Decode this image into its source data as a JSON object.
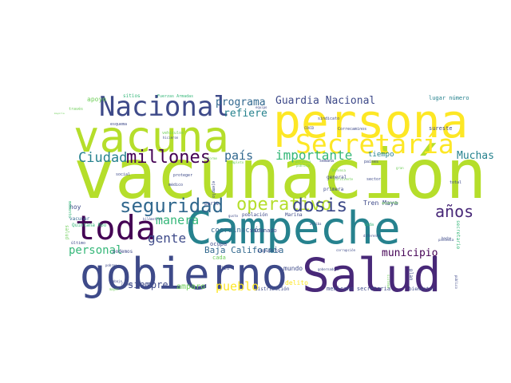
{
  "words": [
    {
      "text": "vacunación",
      "color": "#b5de2b"
    },
    {
      "text": "Campeche",
      "color": "#26828e"
    },
    {
      "text": "persona",
      "color": "#fde725"
    },
    {
      "text": "Salud",
      "color": "#482878"
    },
    {
      "text": "gobierno",
      "color": "#3e4a89"
    },
    {
      "text": "vacuna",
      "color": "#b5de2b"
    },
    {
      "text": "Nacional",
      "color": "#3e4a89"
    },
    {
      "text": "Secretaría",
      "color": "#fde725"
    },
    {
      "text": "toda",
      "color": "#440154"
    },
    {
      "text": "seguridad",
      "color": "#31688e"
    },
    {
      "text": "operativo",
      "color": "#b5de2b"
    },
    {
      "text": "dosis",
      "color": "#3e4a89"
    },
    {
      "text": "millones",
      "color": "#440154"
    },
    {
      "text": "importante",
      "color": "#35b779"
    },
    {
      "text": "Ciudad",
      "color": "#26828e"
    },
    {
      "text": "Muchas",
      "color": "#26828e"
    },
    {
      "text": "país",
      "color": "#31688e"
    },
    {
      "text": "años",
      "color": "#482878"
    },
    {
      "text": "gente",
      "color": "#3e4a89"
    },
    {
      "text": "programa",
      "color": "#31688e"
    },
    {
      "text": "Guardia Nacional",
      "color": "#3e4a89"
    },
    {
      "text": "refiere",
      "color": "#26828e"
    },
    {
      "text": "manera",
      "color": "#35b779"
    },
    {
      "text": "personal",
      "color": "#35b779"
    },
    {
      "text": "municipio",
      "color": "#440154"
    },
    {
      "text": "siempre",
      "color": "#3e4a89"
    },
    {
      "text": "pueblo",
      "color": "#fde725"
    },
    {
      "text": "Baja California",
      "color": "#31688e"
    },
    {
      "text": "tiempo",
      "color": "#26828e"
    },
    {
      "text": "amparo",
      "color": "#6ece58"
    },
    {
      "text": "mundo",
      "color": "#3e4a89"
    },
    {
      "text": "coordinación",
      "color": "#31688e"
    },
    {
      "text": "apoyo",
      "color": "#6ece58"
    },
    {
      "text": "lugar número",
      "color": "#26828e"
    },
    {
      "text": "sitios",
      "color": "#35b779"
    },
    {
      "text": "Fuerzas Armadas",
      "color": "#35b779"
    },
    {
      "text": "hoy",
      "color": "#3e4a89"
    },
    {
      "text": "vacunar",
      "color": "#31688e"
    },
    {
      "text": "Quintana Roo",
      "color": "#35b779"
    },
    {
      "text": "kilómetros",
      "color": "#3e4a89"
    },
    {
      "text": "último",
      "color": "#3e4a89"
    },
    {
      "text": "podemos",
      "color": "#3e4a89"
    },
    {
      "text": "ocupa",
      "color": "#3e4a89"
    },
    {
      "text": "cada",
      "color": "#6ece58"
    },
    {
      "text": "supuesto",
      "color": "#3e4a89"
    },
    {
      "text": "hizo",
      "color": "#3e4a89"
    },
    {
      "text": "distribución",
      "color": "#3e4a89"
    },
    {
      "text": "delito",
      "color": "#fde725"
    },
    {
      "text": "mexicano secretaria",
      "color": "#3e4a89"
    },
    {
      "text": "bienestar",
      "color": "#3e4a89"
    },
    {
      "text": "Tren Maya",
      "color": "#3e4a89"
    },
    {
      "text": "acuerdo",
      "color": "#6ece58"
    },
    {
      "text": "secretario",
      "color": "#35b779"
    },
    {
      "text": "primera",
      "color": "#3e4a89"
    },
    {
      "text": "general",
      "color": "#3e4a89"
    },
    {
      "text": "sector",
      "color": "#3e4a89"
    },
    {
      "text": "vacunado",
      "color": "#3e4a89"
    },
    {
      "text": "población",
      "color": "#3e4a89"
    },
    {
      "text": "Marina",
      "color": "#3e4a89"
    },
    {
      "text": "parte",
      "color": "#3e4a89"
    },
    {
      "text": "social",
      "color": "#3e4a89"
    },
    {
      "text": "proteger",
      "color": "#3e4a89"
    },
    {
      "text": "médico",
      "color": "#3e4a89"
    },
    {
      "text": "Correcaminos",
      "color": "#3e4a89"
    },
    {
      "text": "sureste",
      "color": "#3e4a89"
    },
    {
      "text": "sindicato",
      "color": "#3e4a89"
    },
    {
      "text": "semana",
      "color": "#3e4a89"
    },
    {
      "text": "países",
      "color": "#3e4a89"
    },
    {
      "text": "Defensa",
      "color": "#6ece58"
    },
    {
      "text": "plan",
      "color": "#3e4a89"
    },
    {
      "text": "público",
      "color": "#3e4a89"
    },
    {
      "text": "pandemia",
      "color": "#3e4a89"
    },
    {
      "text": "hecho",
      "color": "#3e4a89"
    },
    {
      "text": "total",
      "color": "#3e4a89"
    },
    {
      "text": "esquema",
      "color": "#3e4a89"
    },
    {
      "text": "través",
      "color": "#6ece58"
    },
    {
      "text": "mayoría",
      "color": "#6ece58"
    },
    {
      "text": "equipo",
      "color": "#3e4a89"
    },
    {
      "text": "vehículos",
      "color": "#6ece58"
    },
    {
      "text": "hicieron",
      "color": "#3e4a89"
    },
    {
      "text": "COVID",
      "color": "#3e4a89"
    },
    {
      "text": "política",
      "color": "#6ece58"
    },
    {
      "text": "suficiente",
      "color": "#6ece58"
    },
    {
      "text": "corrupción",
      "color": "#3e4a89"
    },
    {
      "text": "gobernadora",
      "color": "#3e4a89"
    },
    {
      "text": "diferente",
      "color": "#3e4a89"
    },
    {
      "text": "trabajo",
      "color": "#3e4a89"
    },
    {
      "text": "pobres",
      "color": "#3e4a89"
    },
    {
      "text": "Carlos",
      "color": "#3e4a89"
    },
    {
      "text": "Carmen",
      "color": "#3e4a89"
    },
    {
      "text": "ejemplo",
      "color": "#3e4a89"
    },
    {
      "text": "informe",
      "color": "#6ece58"
    },
    {
      "text": "gusto",
      "color": "#3e4a89"
    },
    {
      "text": "arriba",
      "color": "#3e4a89"
    },
    {
      "text": "vida",
      "color": "#35b779"
    },
    {
      "text": "momento",
      "color": "#35b779"
    },
    {
      "text": "salud",
      "color": "#6ece58"
    },
    {
      "text": "mayor",
      "color": "#6ece58"
    },
    {
      "text": "sistema",
      "color": "#6ece58"
    },
    {
      "text": "gran",
      "color": "#6ece58"
    },
    {
      "text": "completo",
      "color": "#6ece58"
    },
    {
      "text": "pública",
      "color": "#6ece58"
    }
  ]
}
